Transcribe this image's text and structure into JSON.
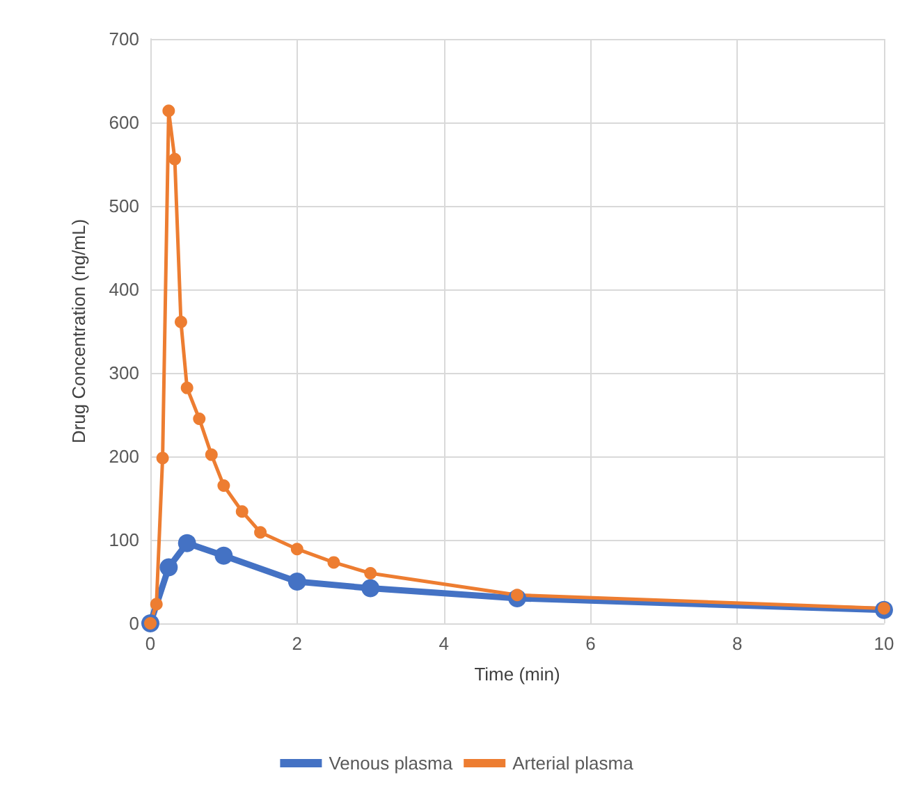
{
  "chart_data": {
    "type": "line",
    "xlabel": "Time (min)",
    "ylabel": "Drug Concentration (ng/mL)",
    "xlim": [
      0,
      10
    ],
    "xticks": [
      0,
      2,
      4,
      6,
      8,
      10
    ],
    "ylim": [
      0,
      700
    ],
    "yticks": [
      0,
      100,
      200,
      300,
      400,
      500,
      600,
      700
    ],
    "grid": true,
    "legend": "bottom",
    "marker": "circle",
    "line_style": "solid",
    "series": [
      {
        "name": "Venous plasma",
        "color": "#4472c4",
        "x": [
          0,
          0.25,
          0.5,
          1,
          2,
          3,
          5,
          10
        ],
        "values": [
          0,
          67,
          96,
          81,
          50,
          42,
          30,
          16
        ]
      },
      {
        "name": "Arterial plasma",
        "color": "#ed7d31",
        "x": [
          0,
          0.083,
          0.167,
          0.25,
          0.333,
          0.417,
          0.5,
          0.667,
          0.833,
          1,
          1.25,
          1.5,
          2,
          2.5,
          3,
          5,
          10
        ],
        "values": [
          0,
          23,
          198,
          614,
          556,
          361,
          282,
          245,
          202,
          165,
          134,
          109,
          89,
          73,
          60,
          34,
          18
        ]
      }
    ]
  }
}
